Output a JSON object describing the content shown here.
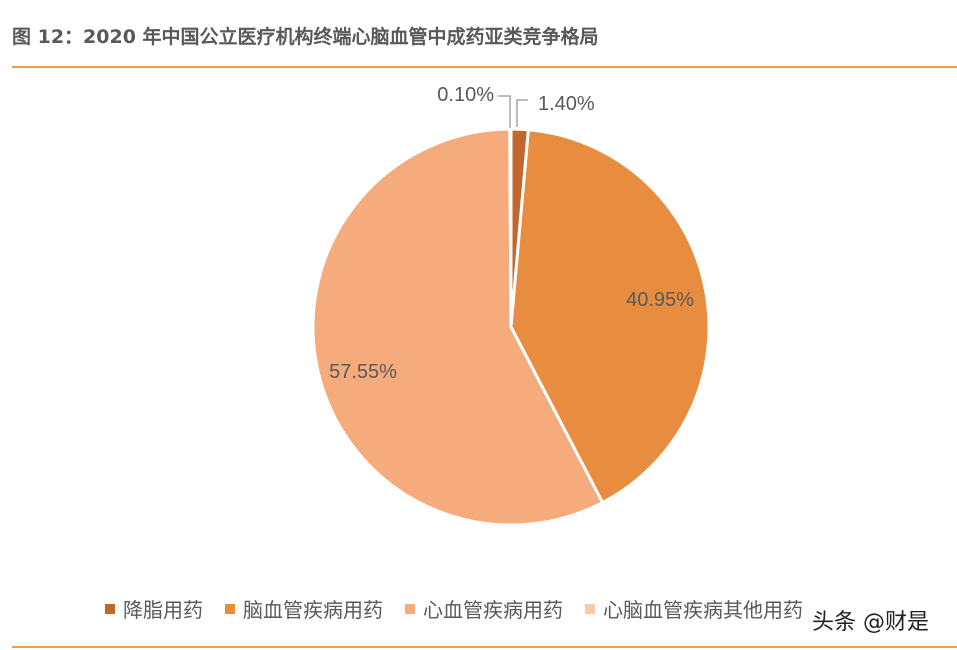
{
  "figure": {
    "title": "图 12：2020 年中国公立医疗机构终端心脑血管中成药亚类竞争格局",
    "watermark": "头条 @财是"
  },
  "chart_data": {
    "type": "pie",
    "title": "图 12：2020 年中国公立医疗机构终端心脑血管中成药亚类竞争格局",
    "legend_position": "bottom",
    "slices": [
      {
        "name": "降脂用药",
        "value": 1.4,
        "label": "1.40%",
        "color": "#c0672c"
      },
      {
        "name": "脑血管疾病用药",
        "value": 40.95,
        "label": "40.95%",
        "color": "#e88d40"
      },
      {
        "name": "心血管疾病用药",
        "value": 57.55,
        "label": "57.55%",
        "color": "#f5ab7c"
      },
      {
        "name": "心脑血管疾病其他用药",
        "value": 0.1,
        "label": "0.10%",
        "color": "#f9c9a9"
      }
    ]
  }
}
